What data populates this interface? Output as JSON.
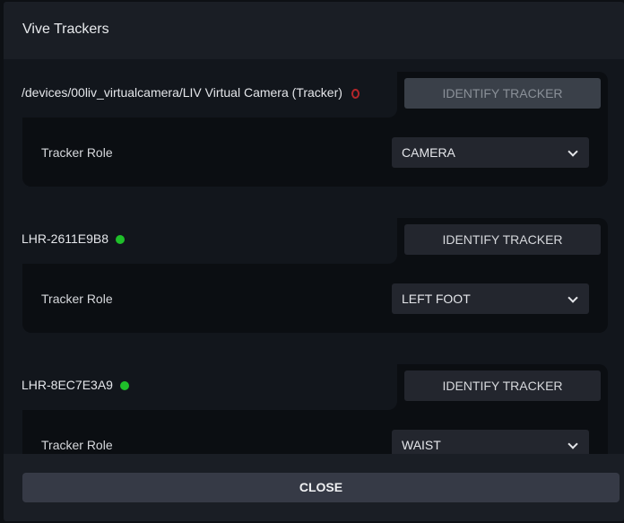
{
  "dialog": {
    "title": "Vive Trackers",
    "close_label": "CLOSE"
  },
  "trackers": [
    {
      "name": "/devices/00liv_virtualcamera/LIV Virtual Camera (Tracker)",
      "status": "disconnected",
      "status_color": "#b3262a",
      "identify_label": "IDENTIFY TRACKER",
      "identify_enabled": false,
      "role_label": "Tracker Role",
      "role": "CAMERA"
    },
    {
      "name": "LHR-2611E9B8",
      "status": "connected",
      "status_color": "#1fbf2a",
      "identify_label": "IDENTIFY TRACKER",
      "identify_enabled": true,
      "role_label": "Tracker Role",
      "role": "LEFT FOOT"
    },
    {
      "name": "LHR-8EC7E3A9",
      "status": "connected",
      "status_color": "#1fbf2a",
      "identify_label": "IDENTIFY TRACKER",
      "identify_enabled": true,
      "role_label": "Tracker Role",
      "role": "WAIST"
    }
  ]
}
